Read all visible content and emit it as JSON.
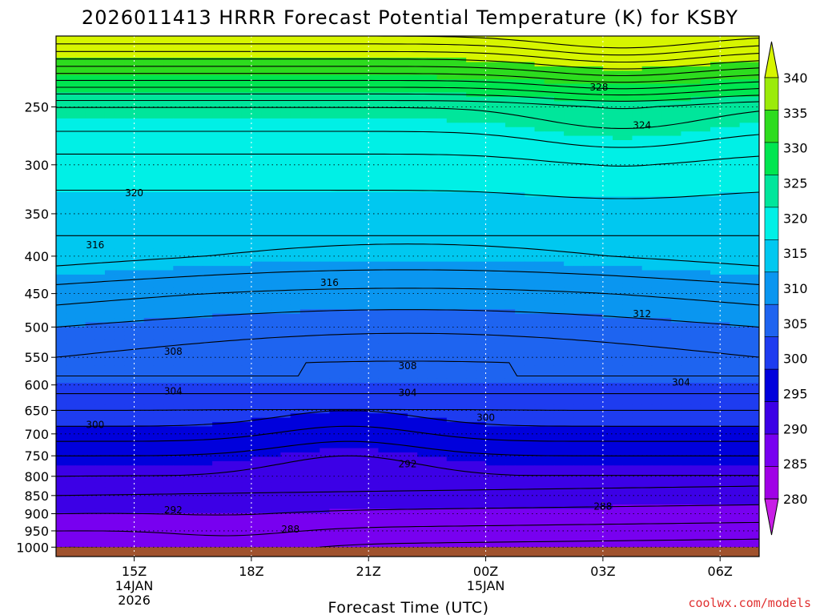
{
  "chart_data": {
    "type": "heatmap",
    "title": "2026011413 HRRR Forecast Potential Temperature (K) for KSBY",
    "xlabel": "Forecast Time (UTC)",
    "ylabel": "",
    "credit": "coolwx.com/models",
    "x_ticks": [
      {
        "label": "15Z",
        "sub1": "14JAN",
        "sub2": "2026",
        "hour": 15
      },
      {
        "label": "18Z",
        "sub1": "",
        "sub2": "",
        "hour": 18
      },
      {
        "label": "21Z",
        "sub1": "",
        "sub2": "",
        "hour": 21
      },
      {
        "label": "00Z",
        "sub1": "15JAN",
        "sub2": "",
        "hour": 24
      },
      {
        "label": "03Z",
        "sub1": "",
        "sub2": "",
        "hour": 27
      },
      {
        "label": "06Z",
        "sub1": "",
        "sub2": "",
        "hour": 30
      }
    ],
    "x_range_hours": [
      13,
      31
    ],
    "y_ticks": [
      "250",
      "300",
      "350",
      "400",
      "450",
      "500",
      "550",
      "600",
      "650",
      "700",
      "750",
      "800",
      "850",
      "900",
      "950",
      "1000"
    ],
    "y_range_hPa": [
      200,
      1030
    ],
    "y_scale": "log",
    "colorbar": {
      "levels": [
        280,
        285,
        290,
        295,
        300,
        305,
        310,
        315,
        320,
        325,
        330,
        335,
        340
      ],
      "colors": [
        "#c81ee6",
        "#a000e6",
        "#7800f0",
        "#3c00e6",
        "#0000dc",
        "#1e3cf0",
        "#1e64f0",
        "#0a96f0",
        "#00c8f0",
        "#00f0e6",
        "#00e69b",
        "#00e650",
        "#2ddc1e",
        "#9beb0a",
        "#d7f500"
      ],
      "tick_labels": [
        "280",
        "285",
        "290",
        "295",
        "300",
        "305",
        "310",
        "315",
        "320",
        "325",
        "330",
        "335",
        "340"
      ]
    },
    "contour_labels": [
      {
        "text": "328",
        "hour": 26.9,
        "hPa": 235
      },
      {
        "text": "324",
        "hour": 28.0,
        "hPa": 265
      },
      {
        "text": "320",
        "hour": 15.0,
        "hPa": 328
      },
      {
        "text": "316",
        "hour": 14.0,
        "hPa": 386
      },
      {
        "text": "316",
        "hour": 20.0,
        "hPa": 435
      },
      {
        "text": "312",
        "hour": 28.0,
        "hPa": 480
      },
      {
        "text": "308",
        "hour": 16.0,
        "hPa": 540
      },
      {
        "text": "308",
        "hour": 22.0,
        "hPa": 565
      },
      {
        "text": "304",
        "hour": 16.0,
        "hPa": 612
      },
      {
        "text": "304",
        "hour": 22.0,
        "hPa": 615
      },
      {
        "text": "304",
        "hour": 29.0,
        "hPa": 595
      },
      {
        "text": "300",
        "hour": 14.0,
        "hPa": 680
      },
      {
        "text": "300",
        "hour": 24.0,
        "hPa": 665
      },
      {
        "text": "292",
        "hour": 22.0,
        "hPa": 770
      },
      {
        "text": "292",
        "hour": 16.0,
        "hPa": 890
      },
      {
        "text": "288",
        "hour": 19.0,
        "hPa": 945
      },
      {
        "text": "288",
        "hour": 27.0,
        "hPa": 880
      }
    ],
    "grid": true
  }
}
